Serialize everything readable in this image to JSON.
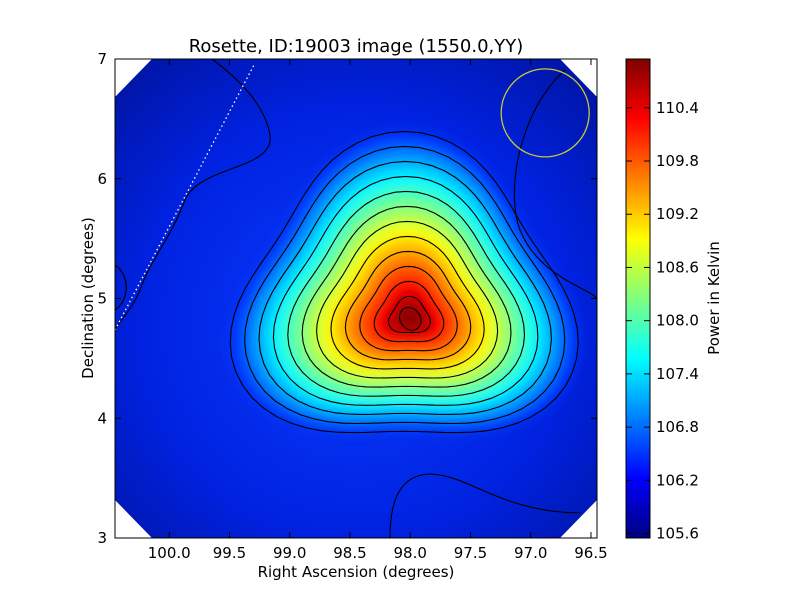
{
  "chart_data": {
    "type": "heatmap",
    "title": "Rosette, ID:19003 image (1550.0,YY)",
    "xlabel": "Right Ascension (degrees)",
    "ylabel": "Declination (degrees)",
    "colorbar_label": "Power in Kelvin",
    "xlim": [
      100.45,
      96.45
    ],
    "ylim": [
      3,
      7
    ],
    "xticks": [
      "100.0",
      "99.5",
      "99.0",
      "98.5",
      "98.0",
      "97.5",
      "97.0",
      "96.5"
    ],
    "xtick_values": [
      100.0,
      99.5,
      99.0,
      98.5,
      98.0,
      97.5,
      97.0,
      96.5
    ],
    "yticks": [
      "3",
      "4",
      "5",
      "6",
      "7"
    ],
    "ytick_values": [
      3,
      4,
      5,
      6,
      7
    ],
    "colorbar_ticks": [
      "105.6",
      "106.2",
      "106.8",
      "107.4",
      "108.0",
      "108.6",
      "109.2",
      "109.8",
      "110.4"
    ],
    "colorbar_tick_values": [
      105.6,
      106.2,
      106.8,
      107.4,
      108.0,
      108.6,
      109.2,
      109.8,
      110.4
    ],
    "colorbar_range": [
      105.55,
      110.95
    ],
    "peak": {
      "ra": 98.0,
      "dec": 4.83,
      "value": 110.9
    },
    "colormap": "jet",
    "contours": true,
    "beam_circle": {
      "ra": 96.88,
      "dec": 6.55,
      "color": "#c8c832"
    },
    "galactic_plane_line": "white dotted"
  }
}
